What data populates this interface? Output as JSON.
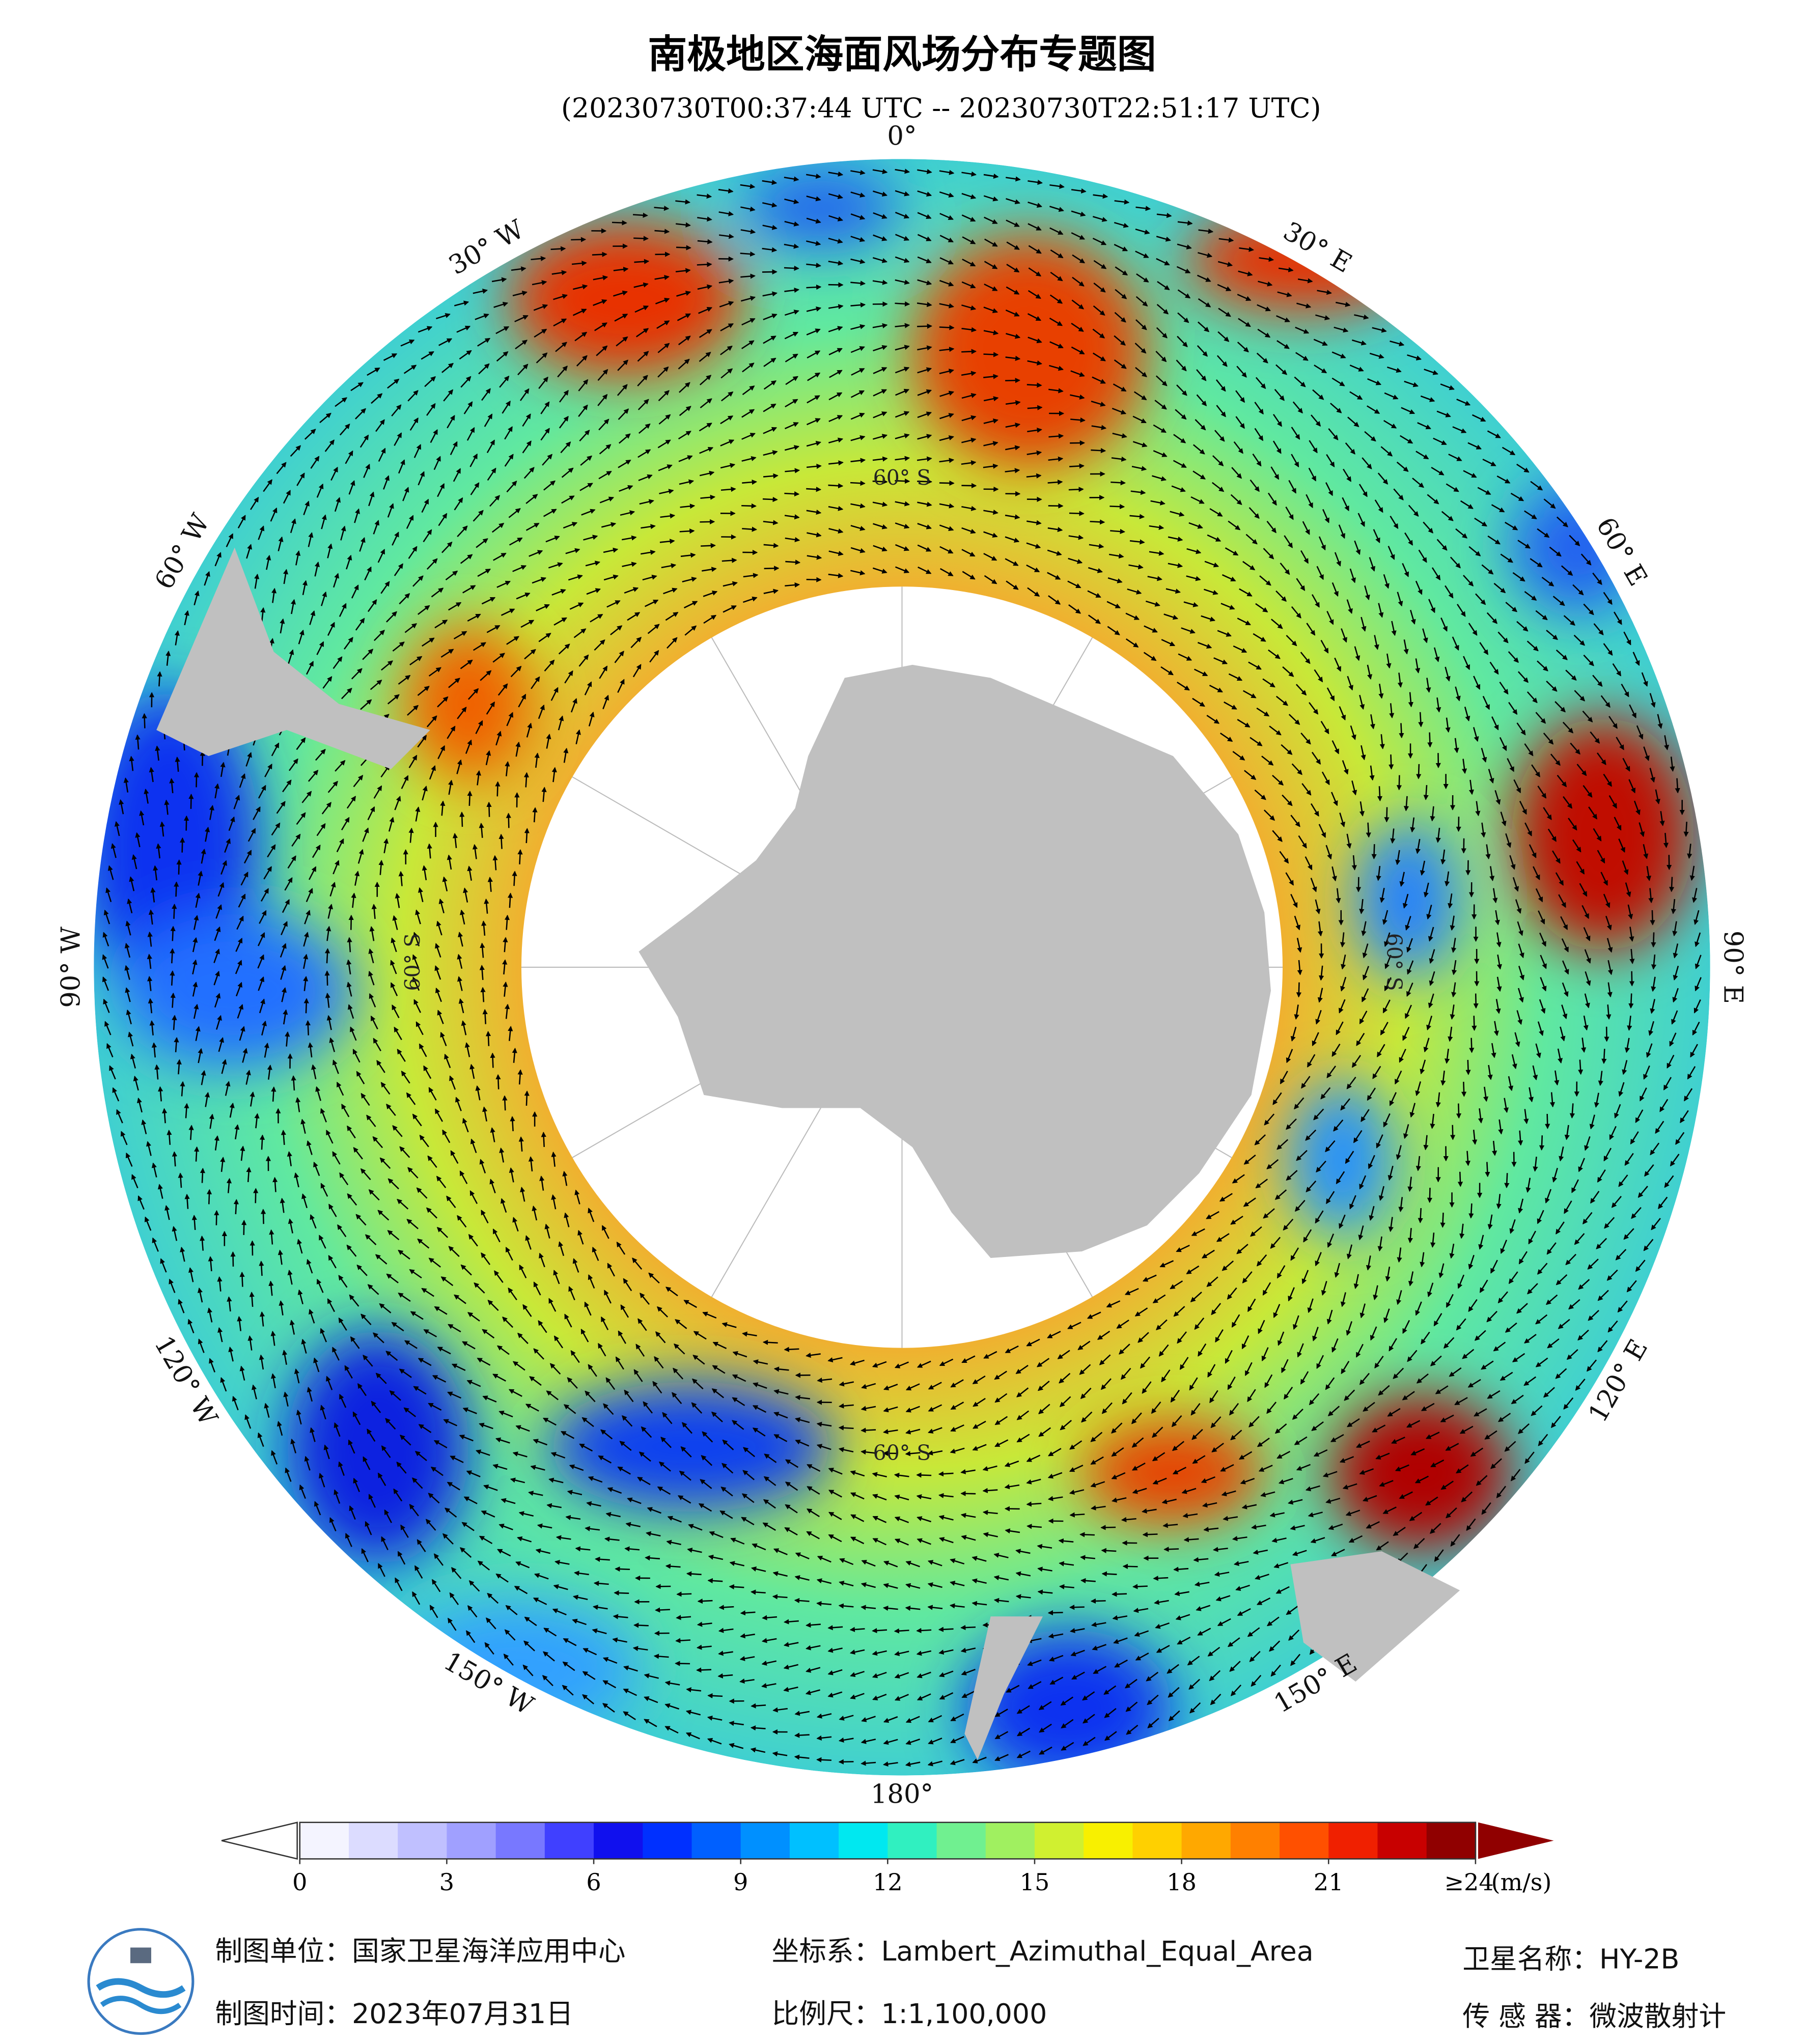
{
  "header": {
    "title": "南极地区海面风场分布专题图",
    "subtitle": "(20230730T00:37:44 UTC -- 20230730T22:51:17 UTC)"
  },
  "map": {
    "longitude_labels": [
      "0°",
      "30° E",
      "60° E",
      "90° E",
      "120° E",
      "150° E",
      "180°",
      "150° W",
      "120° W",
      "90° W",
      "60° W",
      "30° W"
    ],
    "longitudes": [
      0,
      30,
      60,
      90,
      120,
      150,
      180,
      -150,
      -120,
      -90,
      -60,
      -30
    ],
    "latitude_label": "60° S"
  },
  "colorbar": {
    "range": [
      0,
      24
    ],
    "ticks": [
      0,
      3,
      6,
      9,
      12,
      15,
      18,
      {
        "value": 24,
        "label": "≥24"
      }
    ],
    "extra_tick": 21,
    "unit": "(m/s)",
    "colors": [
      "#f4f4ff",
      "#dcdcff",
      "#c0c0ff",
      "#a0a0ff",
      "#7878ff",
      "#4040ff",
      "#1010ee",
      "#0030ff",
      "#0060ff",
      "#0090ff",
      "#00c0ff",
      "#00e8f0",
      "#30f0c0",
      "#70f090",
      "#a0f060",
      "#d0f030",
      "#f8f000",
      "#ffd000",
      "#ffa800",
      "#ff8000",
      "#ff5000",
      "#f02000",
      "#c80000",
      "#900000"
    ],
    "over_color": "#900000"
  },
  "footer": {
    "unit": "制图单位：国家卫星海洋应用中心",
    "time": "制图时间：2023年07月31日",
    "crs": "坐标系：Lambert_Azimuthal_Equal_Area",
    "scale": "比例尺：1:1,100,000",
    "satellite": "卫星名称：HY-2B",
    "sensor": "传 感 器：微波散射计"
  }
}
